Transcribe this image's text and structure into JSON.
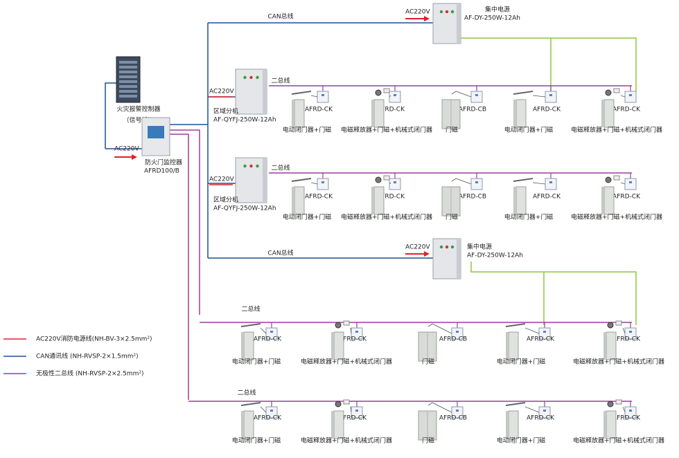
{
  "controller": {
    "label": "火灾报警控制器",
    "note": "（信号线）"
  },
  "monitor": {
    "ac": "AC220V",
    "label": "防火门监控器",
    "model": "AFRD100/B"
  },
  "power_supplies": [
    {
      "ac": "AC220V",
      "label": "集中电源",
      "model": "AF-DY-250W-12Ah",
      "bus": "CAN总线"
    },
    {
      "ac": "AC220V",
      "label": "集中电源",
      "model": "AF-DY-250W-12Ah",
      "bus": "CAN总线"
    }
  ],
  "sub_units": [
    {
      "ac": "AC220V",
      "label": "区域分机",
      "model": "AF-QYFJ-250W-12Ah"
    },
    {
      "ac": "AC220V",
      "label": "区域分机",
      "model": "AF-QYFJ-250W-12Ah"
    }
  ],
  "rows": [
    {
      "bus": "二总线",
      "devices": [
        {
          "module": "AFRD-CK",
          "caption": "电动闭门器+门磁"
        },
        {
          "module": "AFRD-CK",
          "caption": "电磁释放器+门磁+机械式闭门器"
        },
        {
          "module": "AFRD-CB",
          "caption": "门磁"
        },
        {
          "module": "AFRD-CK",
          "caption": "电动闭门器+门磁"
        },
        {
          "module": "AFRD-CK",
          "caption": "电磁释放器+门磁+机械式闭门器"
        }
      ]
    },
    {
      "bus": "二总线",
      "devices": [
        {
          "module": "AFRD-CK",
          "caption": "电动闭门器+门磁"
        },
        {
          "module": "AFRD-CK",
          "caption": "电磁释放器+门磁+机械式闭门器"
        },
        {
          "module": "AFRD-CB",
          "caption": "门磁"
        },
        {
          "module": "AFRD-CK",
          "caption": "电动闭门器+门磁"
        },
        {
          "module": "AFRD-CK",
          "caption": "电磁释放器+门磁+机械式闭门器"
        }
      ]
    },
    {
      "bus": "二总线",
      "devices": [
        {
          "module": "AFRD-CK",
          "caption": "电动闭门器+门磁"
        },
        {
          "module": "AFRD-CK",
          "caption": "电磁释放器+门磁+机械式闭门器"
        },
        {
          "module": "AFRD-CB",
          "caption": "门磁"
        },
        {
          "module": "AFRD-CK",
          "caption": "电动闭门器+门磁"
        },
        {
          "module": "AFRD-CK",
          "caption": "电磁释放器+门磁+机械式闭门器"
        }
      ]
    },
    {
      "bus": "二总线",
      "devices": [
        {
          "module": "AFRD-CK",
          "caption": "电动闭门器+门磁"
        },
        {
          "module": "AFRD-CK",
          "caption": "电磁释放器+门磁+机械式闭门器"
        },
        {
          "module": "AFRD-CB",
          "caption": "门磁"
        },
        {
          "module": "AFRD-CK",
          "caption": "电动闭门器+门磁"
        },
        {
          "module": "AFRD-CK",
          "caption": "电磁释放器+门磁+机械式闭门器"
        }
      ]
    }
  ],
  "legend": [
    {
      "label": "AC220V消防电源线(NH-BV-3×2.5mm²)",
      "color": "#e0202a"
    },
    {
      "label": "CAN通讯线 (NH-RVSP-2×1.5mm²)",
      "color": "#1f4e96"
    },
    {
      "label": "无极性二总线 (NH-RVSP-2×2.5mm²)",
      "color": "#a03a9a"
    }
  ]
}
